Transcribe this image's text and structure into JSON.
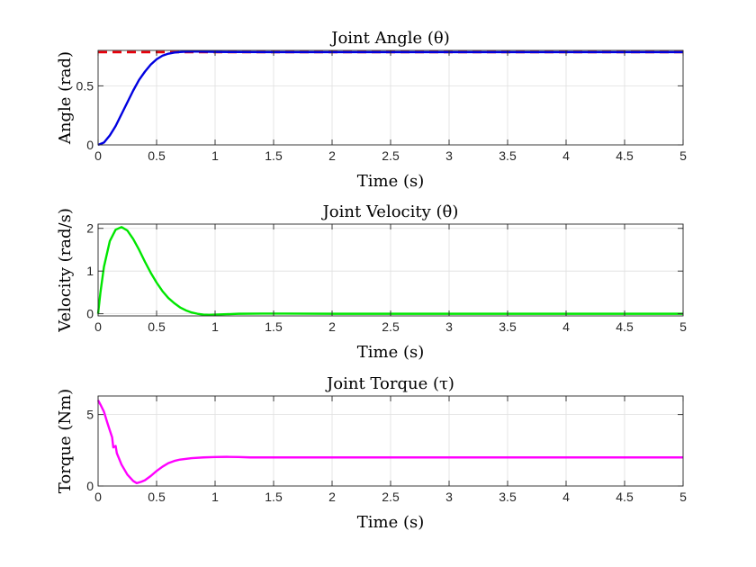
{
  "chart_data": [
    {
      "type": "line",
      "title": "Joint Angle (θ)",
      "xlabel": "Time (s)",
      "ylabel": "Angle (rad)",
      "xlim": [
        0,
        5
      ],
      "ylim": [
        0,
        0.8
      ],
      "xticks": [
        0,
        0.5,
        1,
        1.5,
        2,
        2.5,
        3,
        3.5,
        4,
        4.5,
        5
      ],
      "xtick_labels": [
        "0",
        "0.5",
        "1",
        "1.5",
        "2",
        "2.5",
        "3",
        "3.5",
        "4",
        "4.5",
        "5"
      ],
      "yticks": [
        0,
        0.5
      ],
      "ytick_labels": [
        "0",
        "0.5"
      ],
      "grid": true,
      "series": [
        {
          "color": "#e8000b",
          "dashed": true,
          "x": [
            0,
            5
          ],
          "y": [
            0.785,
            0.785
          ]
        },
        {
          "color": "#0000e0",
          "dashed": false,
          "x": [
            0,
            0.05,
            0.1,
            0.15,
            0.2,
            0.25,
            0.3,
            0.35,
            0.4,
            0.45,
            0.5,
            0.55,
            0.6,
            0.65,
            0.7,
            0.75,
            0.8,
            0.85,
            0.9,
            1.0,
            1.2,
            1.5,
            2,
            3,
            4,
            5
          ],
          "y": [
            0,
            0.02,
            0.08,
            0.16,
            0.26,
            0.36,
            0.46,
            0.55,
            0.62,
            0.68,
            0.725,
            0.755,
            0.772,
            0.781,
            0.786,
            0.789,
            0.79,
            0.79,
            0.789,
            0.787,
            0.786,
            0.785,
            0.785,
            0.785,
            0.785,
            0.785
          ]
        }
      ]
    },
    {
      "type": "line",
      "title": "Joint Velocity (θ̇)",
      "xlabel": "Time (s)",
      "ylabel": "Velocity (rad/s)",
      "xlim": [
        0,
        5
      ],
      "ylim": [
        -0.05,
        2.1
      ],
      "xticks": [
        0,
        0.5,
        1,
        1.5,
        2,
        2.5,
        3,
        3.5,
        4,
        4.5,
        5
      ],
      "xtick_labels": [
        "0",
        "0.5",
        "1",
        "1.5",
        "2",
        "2.5",
        "3",
        "3.5",
        "4",
        "4.5",
        "5"
      ],
      "yticks": [
        0,
        1,
        2
      ],
      "ytick_labels": [
        "0",
        "1",
        "2"
      ],
      "grid": true,
      "series": [
        {
          "color": "#00e600",
          "dashed": false,
          "x": [
            0,
            0.02,
            0.05,
            0.1,
            0.15,
            0.2,
            0.25,
            0.3,
            0.35,
            0.4,
            0.45,
            0.5,
            0.55,
            0.6,
            0.65,
            0.7,
            0.75,
            0.8,
            0.85,
            0.9,
            0.95,
            1.0,
            1.1,
            1.2,
            1.4,
            1.6,
            2,
            3,
            4,
            5
          ],
          "y": [
            0,
            0.5,
            1.1,
            1.7,
            1.97,
            2.03,
            1.95,
            1.75,
            1.5,
            1.22,
            0.96,
            0.73,
            0.53,
            0.37,
            0.25,
            0.15,
            0.08,
            0.03,
            0.0,
            -0.02,
            -0.025,
            -0.02,
            -0.01,
            0.0,
            0.005,
            0.005,
            0.0,
            0.0,
            0.0,
            0.0
          ]
        }
      ]
    },
    {
      "type": "line",
      "title": "Joint Torque (τ)",
      "xlabel": "Time (s)",
      "ylabel": "Torque (Nm)",
      "xlim": [
        0,
        5
      ],
      "ylim": [
        0,
        6.3
      ],
      "xticks": [
        0,
        0.5,
        1,
        1.5,
        2,
        2.5,
        3,
        3.5,
        4,
        4.5,
        5
      ],
      "xtick_labels": [
        "0",
        "0.5",
        "1",
        "1.5",
        "2",
        "2.5",
        "3",
        "3.5",
        "4",
        "4.5",
        "5"
      ],
      "yticks": [
        0,
        5
      ],
      "ytick_labels": [
        "0",
        "5"
      ],
      "grid": true,
      "series": [
        {
          "color": "#ff00ff",
          "dashed": false,
          "x": [
            0,
            0.02,
            0.05,
            0.08,
            0.1,
            0.12,
            0.13,
            0.15,
            0.16,
            0.2,
            0.25,
            0.3,
            0.33,
            0.37,
            0.4,
            0.45,
            0.5,
            0.55,
            0.6,
            0.65,
            0.7,
            0.8,
            0.9,
            1.0,
            1.1,
            1.2,
            1.3,
            1.5,
            2,
            3,
            4,
            5
          ],
          "y": [
            6.0,
            5.7,
            5.2,
            4.4,
            3.9,
            3.4,
            2.7,
            2.8,
            2.3,
            1.5,
            0.8,
            0.35,
            0.2,
            0.3,
            0.4,
            0.7,
            1.05,
            1.35,
            1.6,
            1.75,
            1.85,
            1.95,
            2.0,
            2.03,
            2.04,
            2.03,
            2.0,
            2.0,
            2.0,
            2.0,
            2.0,
            2.0
          ]
        }
      ]
    }
  ]
}
